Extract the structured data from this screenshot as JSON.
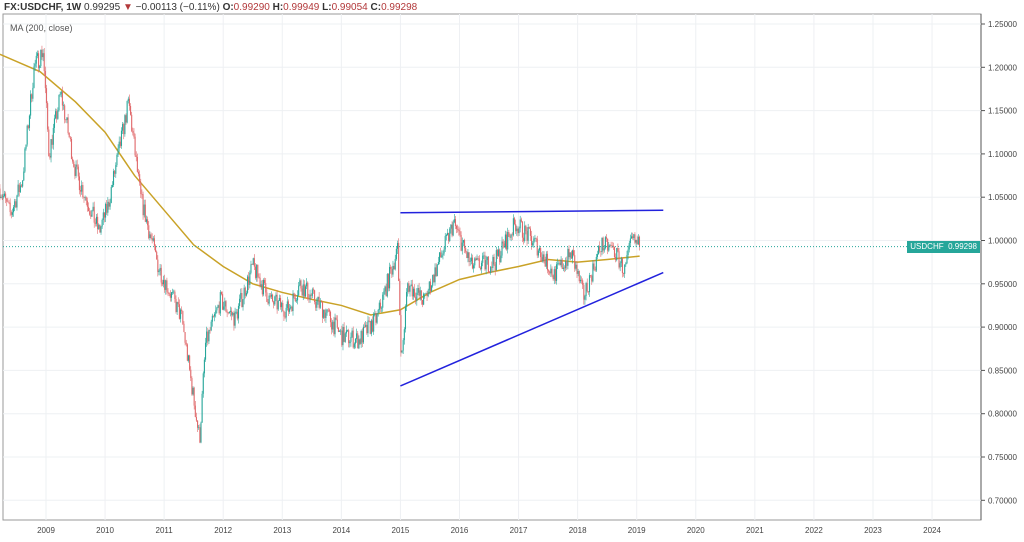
{
  "header": {
    "symbol": "FX:USDCHF, 1W",
    "last": "0.99295",
    "change": "−0.00113 (−0.11%)",
    "o_label": "O:",
    "o": "0.99290",
    "h_label": "H:",
    "h": "0.99949",
    "l_label": "L:",
    "l": "0.99054",
    "c_label": "C:",
    "c": "0.99298",
    "direction_icon": "triangle-down"
  },
  "indicator": {
    "label": "MA (200, close)",
    "color": "#c9a227"
  },
  "price_tag": {
    "symbol": "USDCHF",
    "value": "0.99298",
    "color": "#26a69a"
  },
  "colors": {
    "up": "#26a69a",
    "down": "#e0686a",
    "trendline": "#2222dd",
    "ma": "#c9a227"
  },
  "chart_data": {
    "type": "candlestick",
    "y_ticks": [
      "1.25000",
      "1.20000",
      "1.15000",
      "1.10000",
      "1.05000",
      "1.00000",
      "0.95000",
      "0.90000",
      "0.85000",
      "0.80000",
      "0.75000",
      "0.70000"
    ],
    "x_ticks": [
      "2009",
      "2010",
      "2011",
      "2012",
      "2013",
      "2014",
      "2015",
      "2016",
      "2017",
      "2018",
      "2019",
      "2020",
      "2021",
      "2022",
      "2023",
      "2024"
    ],
    "ylim": [
      0.69,
      1.26
    ],
    "xlim": [
      2008.22,
      2024.8
    ],
    "grid": true,
    "price_path": [
      [
        2008.22,
        1.06
      ],
      [
        2008.4,
        1.03
      ],
      [
        2008.6,
        1.07
      ],
      [
        2008.8,
        1.2
      ],
      [
        2008.95,
        1.22
      ],
      [
        2009.05,
        1.1
      ],
      [
        2009.25,
        1.17
      ],
      [
        2009.5,
        1.08
      ],
      [
        2009.9,
        1.01
      ],
      [
        2010.05,
        1.04
      ],
      [
        2010.4,
        1.16
      ],
      [
        2010.6,
        1.05
      ],
      [
        2010.9,
        0.97
      ],
      [
        2011.3,
        0.91
      ],
      [
        2011.6,
        0.77
      ],
      [
        2011.7,
        0.88
      ],
      [
        2011.95,
        0.93
      ],
      [
        2012.2,
        0.91
      ],
      [
        2012.5,
        0.97
      ],
      [
        2012.8,
        0.93
      ],
      [
        2013.1,
        0.92
      ],
      [
        2013.3,
        0.95
      ],
      [
        2013.7,
        0.92
      ],
      [
        2014.0,
        0.89
      ],
      [
        2014.3,
        0.885
      ],
      [
        2014.6,
        0.91
      ],
      [
        2014.95,
        0.99
      ],
      [
        2015.02,
        0.86
      ],
      [
        2015.12,
        0.95
      ],
      [
        2015.4,
        0.93
      ],
      [
        2015.9,
        1.02
      ],
      [
        2016.2,
        0.97
      ],
      [
        2016.6,
        0.975
      ],
      [
        2016.95,
        1.02
      ],
      [
        2017.3,
        0.995
      ],
      [
        2017.6,
        0.96
      ],
      [
        2017.9,
        0.985
      ],
      [
        2018.1,
        0.935
      ],
      [
        2018.4,
        0.995
      ],
      [
        2018.6,
        0.99
      ],
      [
        2018.8,
        0.965
      ],
      [
        2018.92,
        1.0
      ],
      [
        2019.05,
        0.993
      ]
    ],
    "ma_200": [
      [
        2008.22,
        1.215
      ],
      [
        2008.9,
        1.195
      ],
      [
        2009.5,
        1.16
      ],
      [
        2010.0,
        1.125
      ],
      [
        2010.5,
        1.075
      ],
      [
        2011.0,
        1.035
      ],
      [
        2011.5,
        0.995
      ],
      [
        2012.0,
        0.97
      ],
      [
        2012.5,
        0.95
      ],
      [
        2013.0,
        0.94
      ],
      [
        2013.5,
        0.932
      ],
      [
        2014.0,
        0.925
      ],
      [
        2014.5,
        0.914
      ],
      [
        2015.0,
        0.92
      ],
      [
        2015.5,
        0.94
      ],
      [
        2016.0,
        0.955
      ],
      [
        2016.5,
        0.963
      ],
      [
        2017.0,
        0.97
      ],
      [
        2017.5,
        0.978
      ],
      [
        2018.0,
        0.975
      ],
      [
        2018.5,
        0.978
      ],
      [
        2019.05,
        0.982
      ]
    ],
    "trendlines": [
      [
        [
          2015.0,
          1.032
        ],
        [
          2019.45,
          1.035
        ]
      ],
      [
        [
          2015.0,
          0.832
        ],
        [
          2019.45,
          0.963
        ]
      ]
    ],
    "last_price": 0.99298
  }
}
